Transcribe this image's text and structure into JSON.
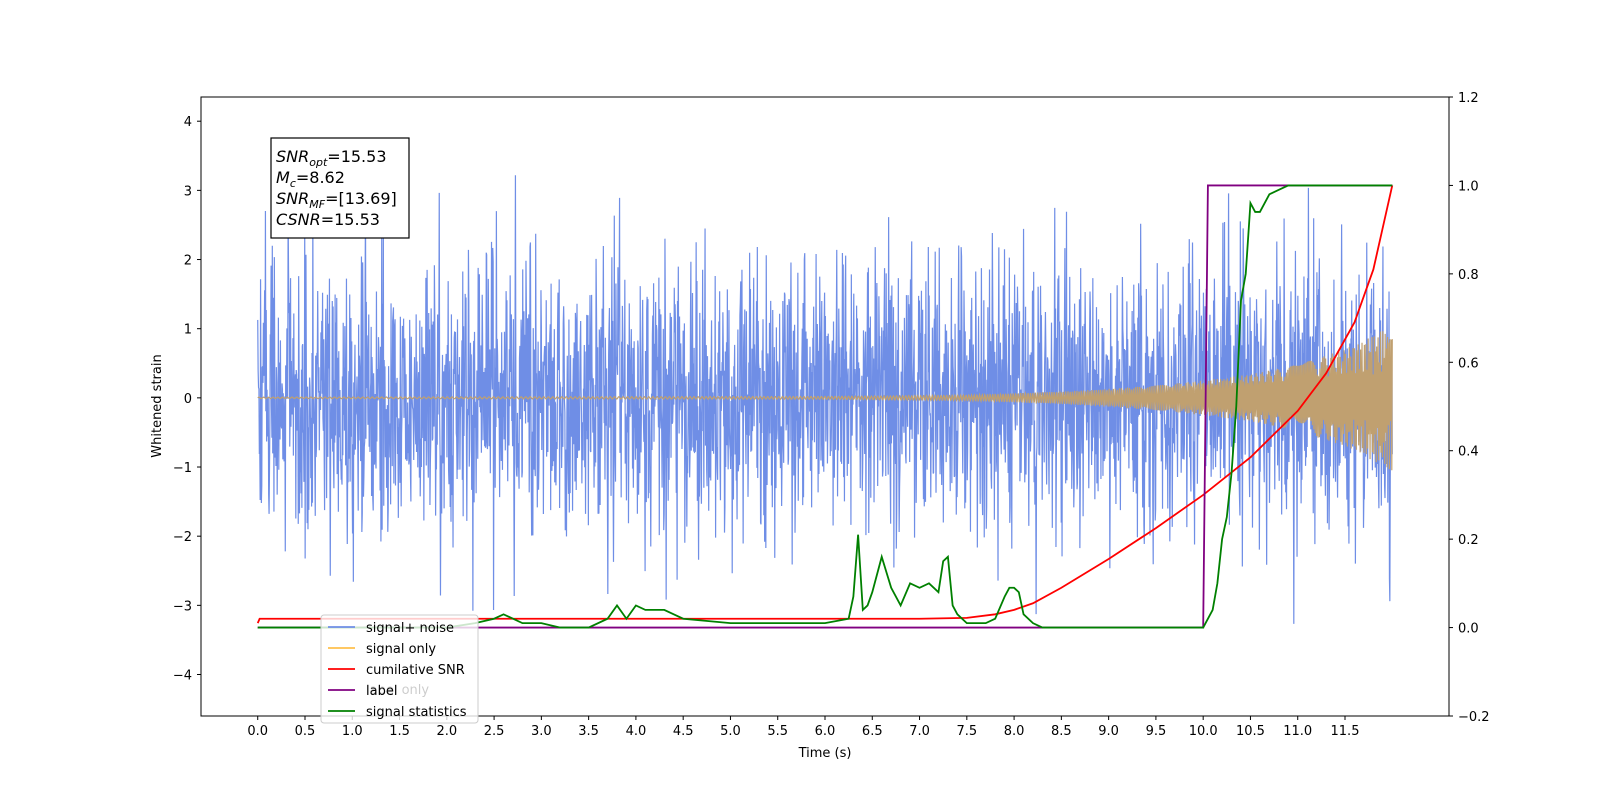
{
  "chart_data": {
    "type": "line",
    "xlabel": "Time (s)",
    "ylabel": "Whitened strain",
    "xlim": [
      -0.6,
      12.6
    ],
    "ylim": [
      -4.6,
      4.35
    ],
    "y2lim": [
      -0.2,
      1.2
    ],
    "x_ticks": [
      "0.0",
      "0.5",
      "1.0",
      "1.5",
      "2.0",
      "2.5",
      "3.0",
      "3.5",
      "4.0",
      "4.5",
      "5.0",
      "5.5",
      "6.0",
      "6.5",
      "7.0",
      "7.5",
      "8.0",
      "8.5",
      "9.0",
      "9.5",
      "10.0",
      "10.5",
      "11.0",
      "11.5"
    ],
    "y_ticks": [
      "−4",
      "−3",
      "−2",
      "−1",
      "0",
      "1",
      "2",
      "3",
      "4"
    ],
    "y2_ticks": [
      "−0.2",
      "0.0",
      "0.2",
      "0.4",
      "0.6",
      "0.8",
      "1.0",
      "1.2"
    ],
    "annotation": {
      "lines": [
        {
          "base": "SNR",
          "sub": "opt",
          "rest": "=15.53"
        },
        {
          "base": "M",
          "sub": "c",
          "rest": "=8.62"
        },
        {
          "base": "SNR",
          "sub": "MF",
          "rest": "=[13.69]"
        },
        {
          "base": "CSNR",
          "sub": "",
          "rest": "=15.53"
        }
      ]
    },
    "legend": {
      "placement": "lower-left",
      "entries": [
        "signal+ noise",
        "signal only",
        "cumilative SNR",
        "label",
        "signal statistics"
      ],
      "hidden_text": "label only"
    },
    "series": [
      {
        "name": "signal+ noise",
        "axis": "left",
        "color": "#6f8ee6",
        "kind": "noise",
        "x_range": [
          0.0,
          12.0
        ],
        "sigma": 1.0,
        "upper_envelope_x": [
          0.0,
          1.0,
          2.0,
          3.0,
          3.5,
          3.75,
          4.0,
          5.0,
          6.0,
          7.0,
          8.0,
          9.0,
          10.0,
          10.5,
          11.0,
          11.5,
          12.0
        ],
        "upper_envelope_y": [
          2.9,
          3.2,
          3.4,
          3.4,
          3.95,
          3.95,
          3.5,
          3.5,
          3.1,
          3.3,
          3.1,
          3.1,
          3.3,
          3.1,
          3.1,
          3.5,
          3.1
        ],
        "lower_envelope_y": [
          -2.7,
          -3.0,
          -3.5,
          -3.4,
          -3.6,
          -3.9,
          -3.4,
          -3.5,
          -3.4,
          -3.5,
          -4.1,
          -3.5,
          -3.5,
          -3.9,
          -3.9,
          -3.9,
          -3.4
        ]
      },
      {
        "name": "signal only",
        "axis": "left",
        "color": "#c0a070",
        "kind": "chirp",
        "envelope_x": [
          0.0,
          6.0,
          7.5,
          8.5,
          9.0,
          9.5,
          10.0,
          10.5,
          11.0,
          11.5,
          12.0
        ],
        "envelope_y": [
          0.01,
          0.02,
          0.04,
          0.09,
          0.13,
          0.18,
          0.25,
          0.34,
          0.48,
          0.7,
          1.05
        ]
      },
      {
        "name": "cumilative SNR",
        "axis": "right",
        "color": "#ff0000",
        "x": [
          0.0,
          0.02,
          1.0,
          2.0,
          3.0,
          4.0,
          5.0,
          6.0,
          7.0,
          7.5,
          7.8,
          8.0,
          8.2,
          8.5,
          9.0,
          9.5,
          10.0,
          10.5,
          11.0,
          11.3,
          11.6,
          11.8,
          12.0
        ],
        "y": [
          0.01,
          0.02,
          0.02,
          0.02,
          0.02,
          0.02,
          0.02,
          0.02,
          0.02,
          0.022,
          0.03,
          0.04,
          0.055,
          0.09,
          0.155,
          0.225,
          0.3,
          0.385,
          0.49,
          0.575,
          0.69,
          0.81,
          1.0
        ]
      },
      {
        "name": "label",
        "axis": "right",
        "color": "#800080",
        "x": [
          0.0,
          10.0,
          10.05,
          12.0
        ],
        "y": [
          0.0,
          0.0,
          1.0,
          1.0
        ]
      },
      {
        "name": "signal statistics",
        "axis": "right",
        "color": "#008000",
        "x": [
          0.0,
          1.0,
          2.0,
          2.3,
          2.5,
          2.6,
          2.7,
          2.8,
          3.0,
          3.2,
          3.5,
          3.7,
          3.8,
          3.9,
          4.0,
          4.1,
          4.3,
          4.4,
          4.5,
          5.0,
          5.5,
          6.0,
          6.25,
          6.3,
          6.35,
          6.4,
          6.45,
          6.5,
          6.6,
          6.7,
          6.8,
          6.9,
          7.0,
          7.1,
          7.2,
          7.25,
          7.3,
          7.35,
          7.4,
          7.5,
          7.6,
          7.7,
          7.8,
          7.9,
          7.95,
          8.0,
          8.05,
          8.1,
          8.2,
          8.3,
          8.5,
          9.0,
          9.5,
          10.0,
          10.1,
          10.15,
          10.2,
          10.25,
          10.3,
          10.35,
          10.4,
          10.45,
          10.5,
          10.55,
          10.6,
          10.7,
          10.8,
          10.9,
          11.0,
          12.0
        ],
        "y": [
          0.0,
          0.0,
          0.0,
          0.01,
          0.02,
          0.03,
          0.02,
          0.01,
          0.01,
          0.0,
          0.0,
          0.02,
          0.05,
          0.02,
          0.05,
          0.04,
          0.04,
          0.03,
          0.02,
          0.01,
          0.01,
          0.01,
          0.02,
          0.07,
          0.21,
          0.04,
          0.05,
          0.08,
          0.16,
          0.09,
          0.05,
          0.1,
          0.09,
          0.1,
          0.08,
          0.15,
          0.16,
          0.05,
          0.03,
          0.01,
          0.01,
          0.01,
          0.02,
          0.07,
          0.09,
          0.09,
          0.08,
          0.03,
          0.01,
          0.0,
          0.0,
          0.0,
          0.0,
          0.0,
          0.04,
          0.1,
          0.2,
          0.25,
          0.35,
          0.5,
          0.74,
          0.8,
          0.96,
          0.94,
          0.94,
          0.98,
          0.99,
          1.0,
          1.0,
          1.0
        ]
      }
    ]
  }
}
